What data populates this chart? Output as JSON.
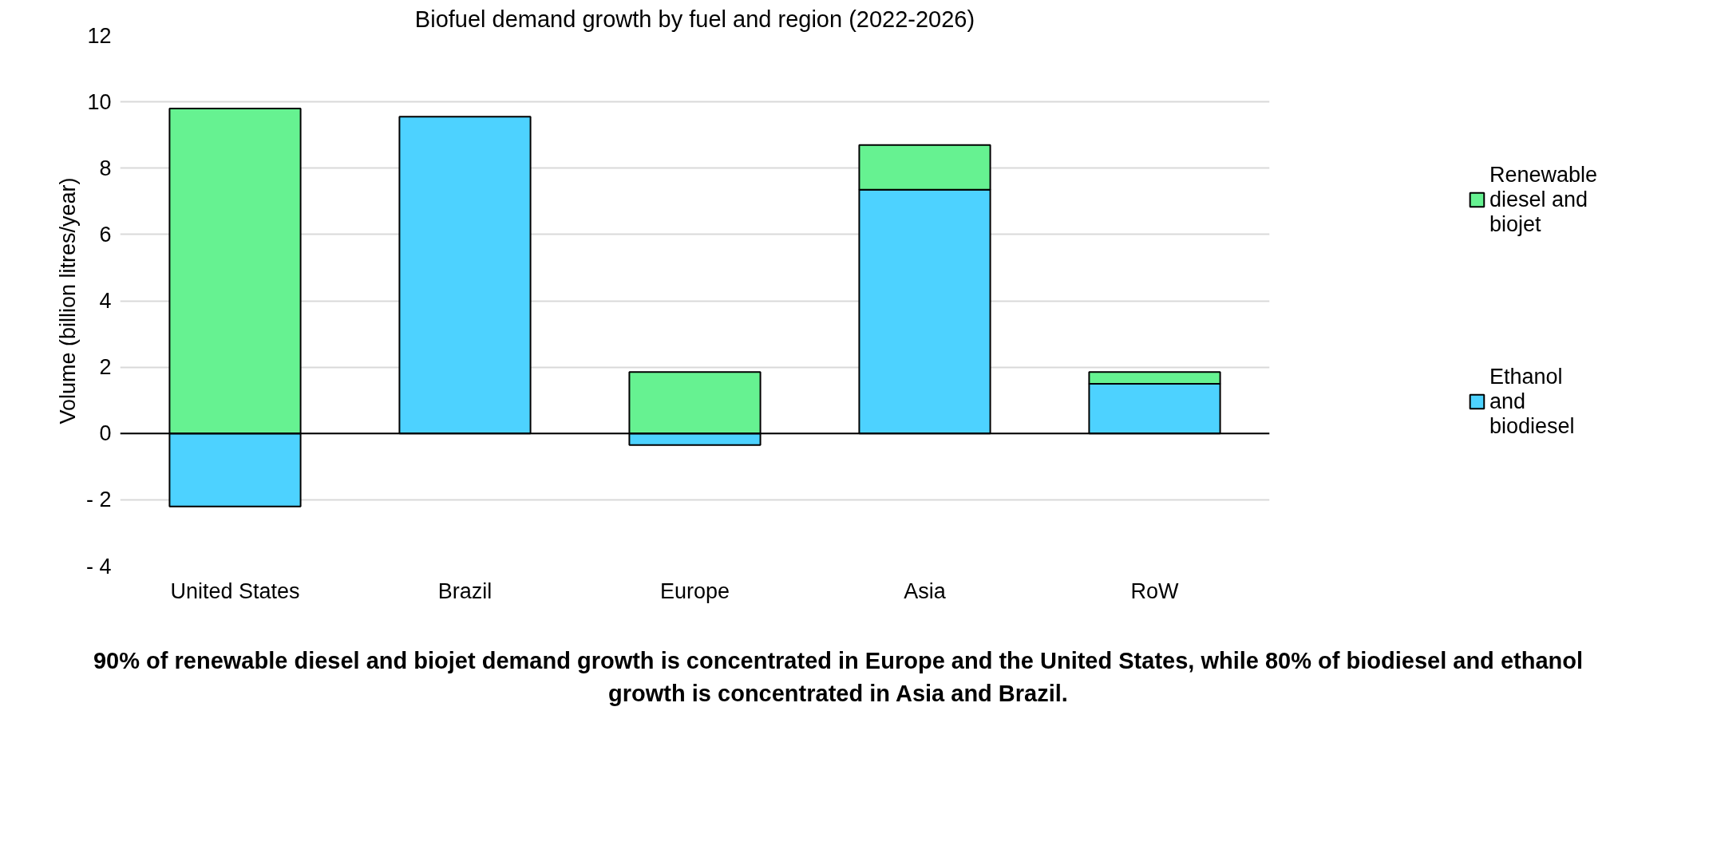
{
  "chart_data": {
    "type": "bar",
    "stacked": true,
    "title": "Biofuel demand growth by fuel and region (2022-2026)",
    "ylabel": "Volume (billion litres/year)",
    "categories": [
      "United States",
      "Brazil",
      "Europe",
      "Asia",
      "RoW"
    ],
    "series": [
      {
        "name": "Ethanol and biodiesel",
        "color": "#4dd2ff",
        "values": [
          -2.2,
          9.55,
          -0.35,
          7.35,
          1.5
        ]
      },
      {
        "name": "Renewable diesel and biojet",
        "color": "#66f291",
        "values": [
          9.8,
          null,
          1.85,
          1.35,
          0.35
        ]
      }
    ],
    "ylim": [
      -4,
      12
    ],
    "yticks": [
      {
        "value": -4,
        "label": "- 4"
      },
      {
        "value": -2,
        "label": "- 2"
      },
      0,
      2,
      4,
      6,
      8,
      10,
      12
    ],
    "grid": "y",
    "legend": "right",
    "annotations": [
      "90% of renewable diesel and biojet demand growth is concentrated in Europe and the United States, while 80% of biodiesel and ethanol growth is concentrated in Asia and Brazil."
    ]
  }
}
